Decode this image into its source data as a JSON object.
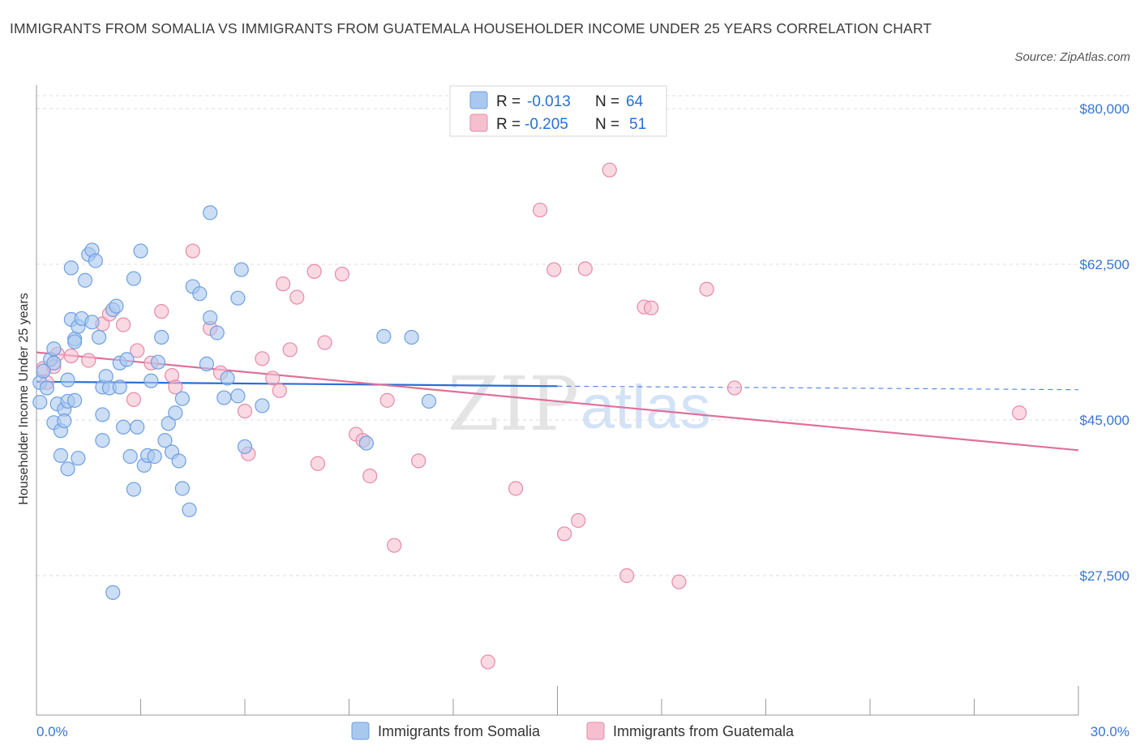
{
  "title": "IMMIGRANTS FROM SOMALIA VS IMMIGRANTS FROM GUATEMALA HOUSEHOLDER INCOME UNDER 25 YEARS CORRELATION CHART",
  "source": "Source: ZipAtlas.com",
  "watermark": {
    "zip": "ZIP",
    "atlas": "atlas"
  },
  "colors": {
    "somalia_fill": "#a9c8f0",
    "somalia_stroke": "#6f9fe0",
    "somalia_line": "#2a6fd6",
    "guatemala_fill": "#f6bfd0",
    "guatemala_stroke": "#e58aa8",
    "guatemala_line": "#e0709a",
    "axis_text": "#3a76d0",
    "grid": "#dcdcdc"
  },
  "legend": {
    "somalia": {
      "r_label": "R =",
      "r_value": "-0.013",
      "n_label": "N =",
      "n_value": "64"
    },
    "guatemala": {
      "r_label": "R =",
      "r_value": "-0.205",
      "n_label": "N =",
      "n_value": "51"
    }
  },
  "bottom_legend": {
    "somalia": "Immigrants from Somalia",
    "guatemala": "Immigrants from Guatemala"
  },
  "chart_data": {
    "type": "scatter",
    "xlabel": "",
    "ylabel": "Householder Income Under 25 years",
    "xlim": [
      0,
      30
    ],
    "ylim": [
      10000,
      80000
    ],
    "x_tick_labels": [
      {
        "value": 0,
        "label": "0.0%"
      },
      {
        "value": 30,
        "label": "30.0%"
      }
    ],
    "y_tick_labels": [
      {
        "value": 80000,
        "label": "$80,000"
      },
      {
        "value": 62500,
        "label": "$62,500"
      },
      {
        "value": 45000,
        "label": "$45,000"
      },
      {
        "value": 27500,
        "label": "$27,500"
      }
    ],
    "series": [
      {
        "name": "Immigrants from Somalia",
        "trend": {
          "x": [
            0,
            15
          ],
          "y": [
            49300,
            48800
          ],
          "dashed_x": [
            15,
            30
          ],
          "dashed_y": [
            48800,
            48400
          ]
        },
        "points": [
          [
            0.1,
            49200
          ],
          [
            0.1,
            47000
          ],
          [
            0.2,
            50500
          ],
          [
            0.3,
            48600
          ],
          [
            0.4,
            51800
          ],
          [
            0.5,
            53000
          ],
          [
            0.5,
            44700
          ],
          [
            0.5,
            51400
          ],
          [
            0.6,
            46800
          ],
          [
            0.7,
            43800
          ],
          [
            0.7,
            41000
          ],
          [
            0.8,
            46200
          ],
          [
            0.8,
            44900
          ],
          [
            0.9,
            47100
          ],
          [
            0.9,
            39500
          ],
          [
            0.9,
            49500
          ],
          [
            1.0,
            56300
          ],
          [
            1.0,
            62100
          ],
          [
            1.1,
            54100
          ],
          [
            1.1,
            47200
          ],
          [
            1.1,
            53800
          ],
          [
            1.2,
            55500
          ],
          [
            1.2,
            40700
          ],
          [
            1.3,
            56400
          ],
          [
            1.4,
            60700
          ],
          [
            1.5,
            63600
          ],
          [
            1.6,
            56000
          ],
          [
            1.6,
            64100
          ],
          [
            1.7,
            62900
          ],
          [
            1.8,
            54300
          ],
          [
            1.9,
            48700
          ],
          [
            1.9,
            42700
          ],
          [
            2.0,
            49900
          ],
          [
            2.1,
            48600
          ],
          [
            2.2,
            57400
          ],
          [
            2.3,
            57800
          ],
          [
            2.4,
            48700
          ],
          [
            2.4,
            51400
          ],
          [
            2.5,
            44200
          ],
          [
            2.6,
            51800
          ],
          [
            2.7,
            40900
          ],
          [
            2.8,
            60900
          ],
          [
            2.9,
            44200
          ],
          [
            3.0,
            64000
          ],
          [
            3.1,
            39900
          ],
          [
            3.2,
            41000
          ],
          [
            3.3,
            49400
          ],
          [
            3.4,
            40900
          ],
          [
            3.5,
            51500
          ],
          [
            3.6,
            54300
          ],
          [
            3.7,
            42700
          ],
          [
            3.8,
            44600
          ],
          [
            3.9,
            41400
          ],
          [
            4.0,
            45800
          ],
          [
            4.1,
            40400
          ],
          [
            4.2,
            47400
          ],
          [
            4.2,
            37300
          ],
          [
            4.5,
            60000
          ],
          [
            4.7,
            59200
          ],
          [
            4.9,
            51300
          ],
          [
            5.0,
            56500
          ],
          [
            5.2,
            54800
          ],
          [
            5.4,
            47500
          ],
          [
            6.5,
            46600
          ]
        ],
        "extra_points": [
          [
            1.9,
            45600
          ],
          [
            2.8,
            37200
          ],
          [
            4.4,
            34900
          ],
          [
            2.2,
            25600
          ],
          [
            5.0,
            68300
          ],
          [
            5.5,
            49700
          ],
          [
            10.0,
            54400
          ],
          [
            10.8,
            54300
          ],
          [
            11.3,
            47100
          ],
          [
            9.5,
            42400
          ],
          [
            5.9,
            61900
          ],
          [
            5.8,
            58700
          ],
          [
            6.0,
            42000
          ],
          [
            5.8,
            47700
          ]
        ]
      },
      {
        "name": "Immigrants from Guatemala",
        "trend": {
          "x": [
            0,
            30
          ],
          "y": [
            52600,
            41600
          ]
        },
        "points": [
          [
            0.2,
            50800
          ],
          [
            0.3,
            49200
          ],
          [
            0.5,
            51000
          ],
          [
            0.6,
            52400
          ],
          [
            1.0,
            52200
          ],
          [
            1.5,
            51700
          ],
          [
            1.9,
            55800
          ],
          [
            2.1,
            56900
          ],
          [
            2.5,
            55700
          ],
          [
            2.8,
            47300
          ],
          [
            2.9,
            52800
          ],
          [
            3.3,
            51400
          ],
          [
            3.6,
            57200
          ],
          [
            3.9,
            50000
          ],
          [
            4.0,
            48700
          ],
          [
            4.5,
            64000
          ],
          [
            5.0,
            55300
          ],
          [
            5.3,
            50300
          ],
          [
            6.0,
            46000
          ],
          [
            6.1,
            41200
          ],
          [
            6.5,
            51900
          ],
          [
            6.8,
            49700
          ],
          [
            7.0,
            48300
          ],
          [
            7.1,
            60300
          ],
          [
            7.3,
            52900
          ],
          [
            7.5,
            58800
          ],
          [
            8.0,
            61700
          ],
          [
            8.1,
            40100
          ],
          [
            8.3,
            53700
          ],
          [
            8.8,
            61400
          ],
          [
            9.2,
            43400
          ],
          [
            9.6,
            38700
          ],
          [
            10.1,
            47200
          ],
          [
            10.3,
            30900
          ],
          [
            11.0,
            40400
          ],
          [
            13.8,
            37300
          ],
          [
            14.5,
            68600
          ],
          [
            14.9,
            61900
          ],
          [
            15.8,
            62000
          ],
          [
            15.2,
            32200
          ],
          [
            15.6,
            33700
          ],
          [
            16.5,
            73100
          ],
          [
            17.0,
            27500
          ],
          [
            17.5,
            57700
          ],
          [
            17.7,
            57600
          ],
          [
            18.5,
            26800
          ],
          [
            19.3,
            59700
          ],
          [
            20.1,
            48600
          ],
          [
            28.3,
            45800
          ],
          [
            13.0,
            17800
          ],
          [
            9.4,
            42700
          ]
        ]
      }
    ]
  }
}
